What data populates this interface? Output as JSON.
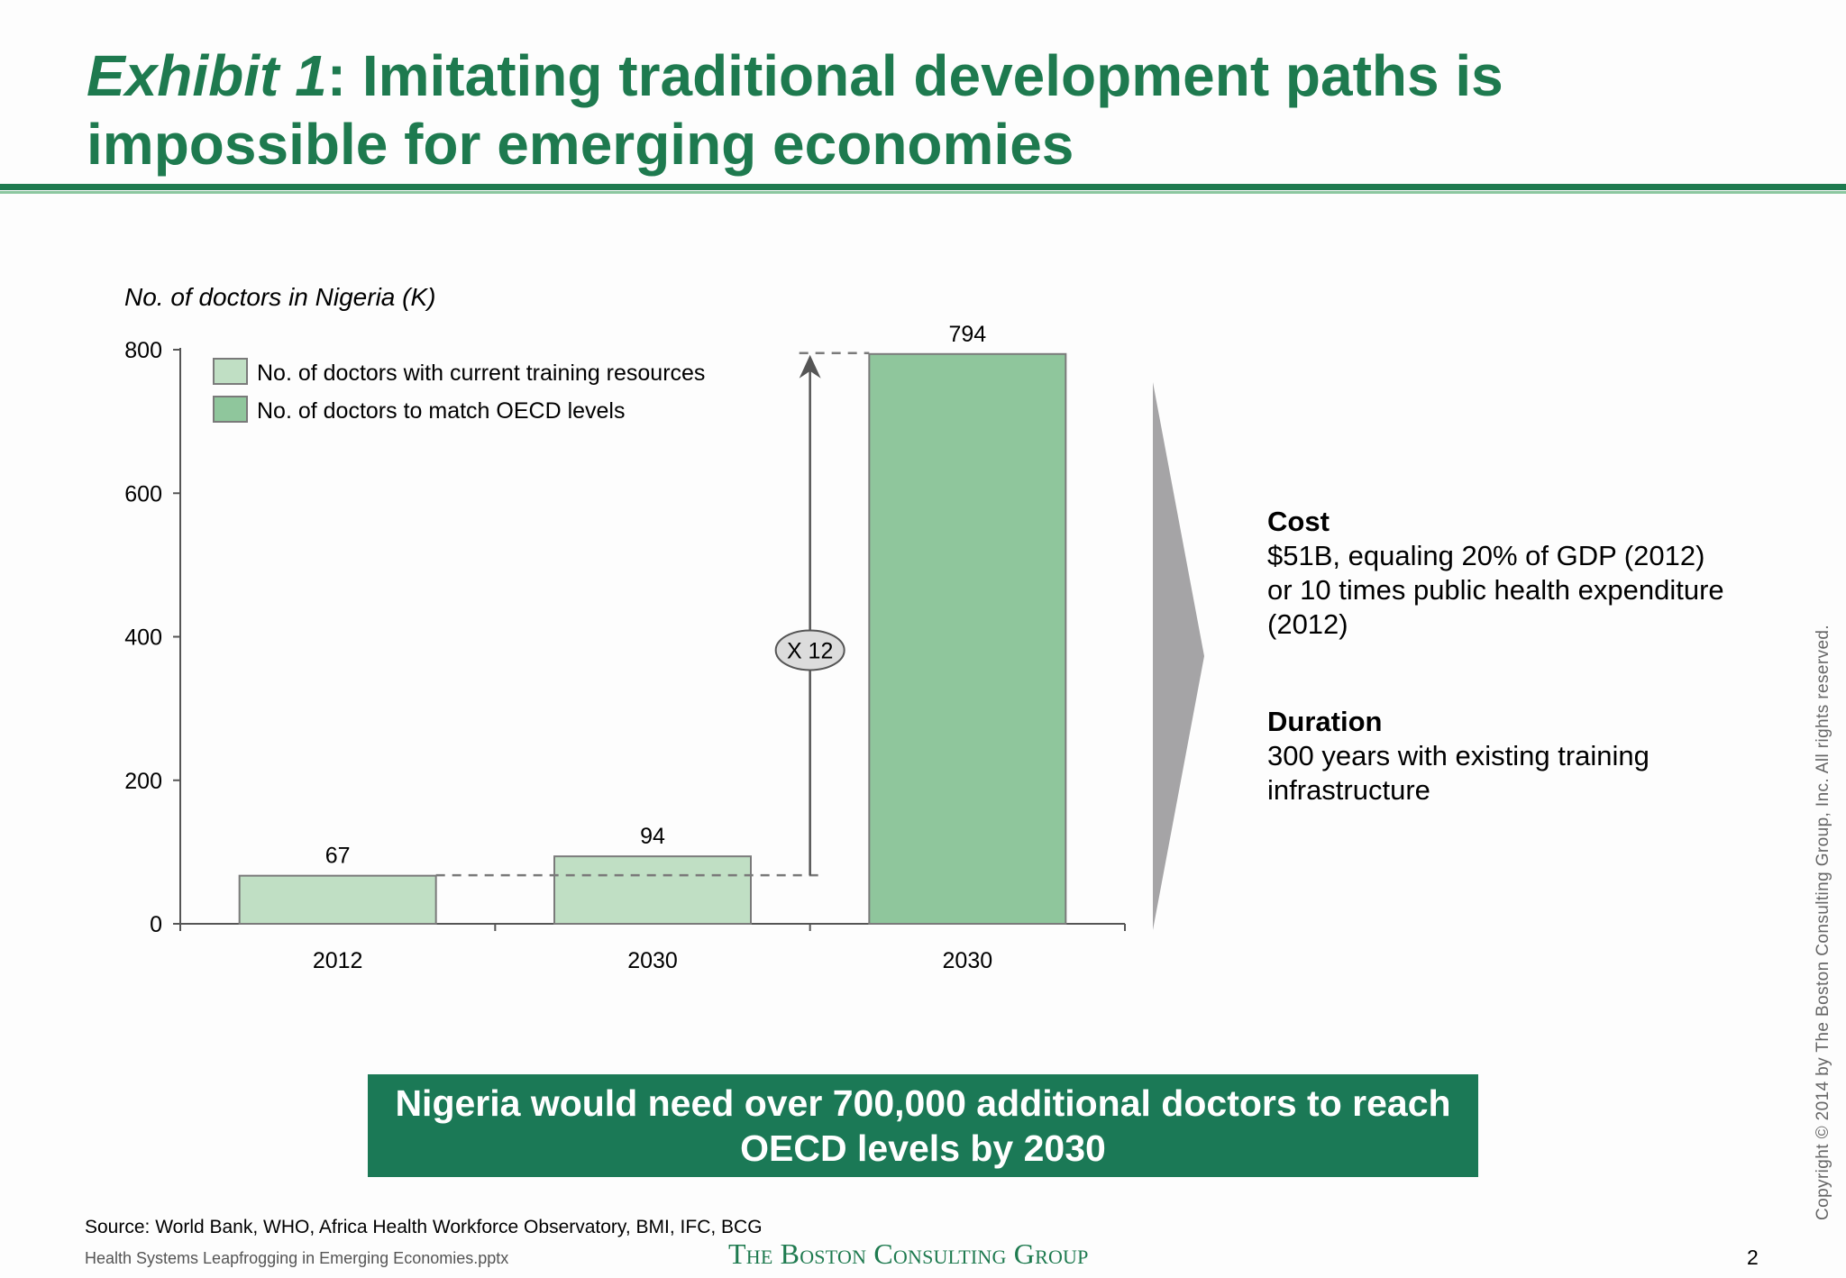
{
  "title": {
    "exhibit": "Exhibit 1",
    "rest": ": Imitating traditional development paths is impossible for emerging economies"
  },
  "chart_data": {
    "type": "bar",
    "title": "No. of doctors in Nigeria (K)",
    "categories": [
      "2012",
      "2030",
      "2030"
    ],
    "values": [
      67,
      94,
      794
    ],
    "series_index": [
      0,
      0,
      1
    ],
    "series": [
      {
        "name": "No. of doctors with current training resources",
        "color": "#c0dfc4"
      },
      {
        "name": "No. of doctors to match OECD levels",
        "color": "#8fc69c"
      }
    ],
    "ylim": [
      0,
      800
    ],
    "yticks": [
      "0",
      "200",
      "400",
      "600",
      "800"
    ],
    "ytick_values": [
      0,
      200,
      400,
      600,
      800
    ],
    "data_labels": [
      "67",
      "94",
      "794"
    ],
    "multiplier_label": "X 12",
    "legend_placement": "top-left",
    "grid": false
  },
  "text_blocks": {
    "cost_heading": "Cost",
    "cost_body": "$51B, equaling 20% of GDP (2012) or 10 times public health expenditure (2012)",
    "duration_heading": "Duration",
    "duration_body": "300 years with existing training infrastructure"
  },
  "callout": "Nigeria would need over 700,000 additional doctors to reach OECD levels by 2030",
  "footer": {
    "source": "Source: World Bank, WHO, Africa Health Workforce Observatory, BMI, IFC, BCG",
    "filename": "Health Systems Leapfrogging in Emerging Economies.pptx",
    "logo": "The Boston Consulting Group",
    "page_number": "2",
    "copyright": "Copyright © 2014 by The Boston Consulting Group, Inc. All rights reserved."
  },
  "colors": {
    "accent": "#1e7a4f",
    "callout_bg": "#1b7956",
    "arrow_gray": "#a5a4a6"
  }
}
